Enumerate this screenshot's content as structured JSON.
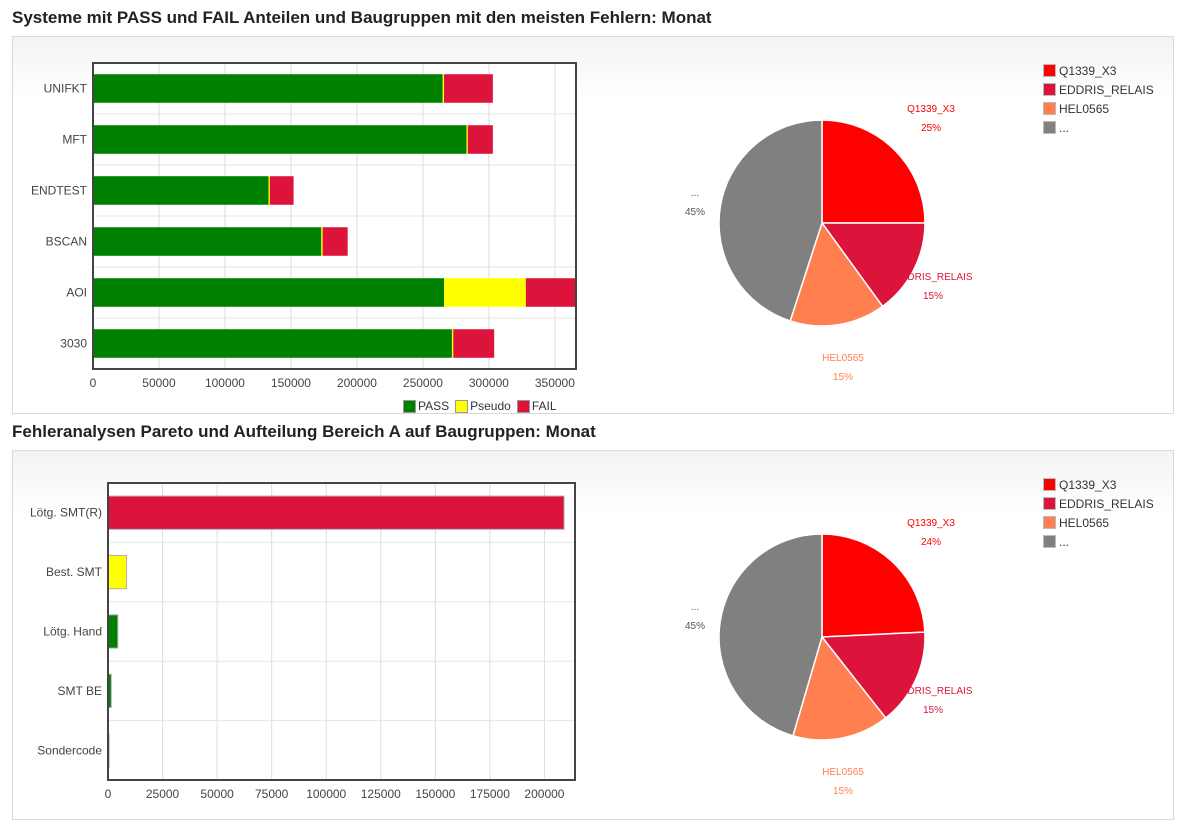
{
  "sections": [
    {
      "title": "Systeme mit PASS und FAIL Anteilen und Baugruppen mit den meisten Fehlern: Monat"
    },
    {
      "title": "Fehleranalysen Pareto und Aufteilung Bereich A auf Baugruppen: Monat"
    }
  ],
  "colors": {
    "pass": "#008000",
    "pseudo": "#ffff00",
    "fail": "#dc143c",
    "q1339": "#ff0000",
    "eddris": "#dc143c",
    "hel": "#ff7f50",
    "other": "#808080"
  },
  "chart_data": [
    {
      "type": "bar",
      "orientation": "horizontal",
      "stacked": true,
      "categories": [
        "UNIFKT",
        "MFT",
        "ENDTEST",
        "BSCAN",
        "AOI",
        "3030"
      ],
      "series": [
        {
          "name": "PASS",
          "color": "#008000",
          "values": [
            265000,
            283000,
            133000,
            173000,
            266000,
            272000
          ]
        },
        {
          "name": "Pseudo",
          "color": "#ffff00",
          "values": [
            1000,
            1000,
            1000,
            1000,
            62000,
            1000
          ]
        },
        {
          "name": "FAIL",
          "color": "#dc143c",
          "values": [
            37000,
            19000,
            18000,
            19000,
            38000,
            31000
          ]
        }
      ],
      "xticks": [
        "0",
        "50000",
        "100000",
        "150000",
        "200000",
        "250000",
        "300000",
        "350000"
      ],
      "xlim": [
        0,
        366000
      ],
      "grid": true,
      "legend": "bottom"
    },
    {
      "type": "pie",
      "slices": [
        {
          "legend": "Q1339_X3",
          "label": "Q1339_X3",
          "pct_label": "25%",
          "value": 25,
          "color": "#ff0000"
        },
        {
          "legend": "EDDRIS_RELAIS",
          "label": "EDDRIS_RELAIS",
          "pct_label": "15%",
          "value": 15,
          "color": "#dc143c"
        },
        {
          "legend": "HEL0565",
          "label": "HEL0565",
          "pct_label": "15%",
          "value": 15,
          "color": "#ff7f50"
        },
        {
          "legend": "...",
          "label": "...",
          "pct_label": "45%",
          "value": 45,
          "color": "#808080"
        }
      ],
      "legend": "top-right"
    },
    {
      "type": "bar",
      "orientation": "horizontal",
      "categories": [
        "Lötg. SMT(R)",
        "Best. SMT",
        "Lötg. Hand",
        "SMT BE",
        "Sondercode"
      ],
      "values": [
        209000,
        8500,
        4500,
        1500,
        500
      ],
      "colors": [
        "#dc143c",
        "#ffff00",
        "#008000",
        "#008000",
        "#008000"
      ],
      "xticks": [
        "0",
        "25000",
        "50000",
        "75000",
        "100000",
        "125000",
        "150000",
        "175000",
        "200000"
      ],
      "xlim": [
        0,
        214000
      ],
      "grid": true
    },
    {
      "type": "pie",
      "slices": [
        {
          "legend": "Q1339_X3",
          "label": "Q1339_X3",
          "pct_label": "24%",
          "value": 24,
          "color": "#ff0000"
        },
        {
          "legend": "EDDRIS_RELAIS",
          "label": "EDDRIS_RELAIS",
          "pct_label": "15%",
          "value": 15,
          "color": "#dc143c"
        },
        {
          "legend": "HEL0565",
          "label": "HEL0565",
          "pct_label": "15%",
          "value": 15,
          "color": "#ff7f50"
        },
        {
          "legend": "...",
          "label": "...",
          "pct_label": "45%",
          "value": 45,
          "color": "#808080"
        }
      ],
      "legend": "top-right"
    }
  ]
}
